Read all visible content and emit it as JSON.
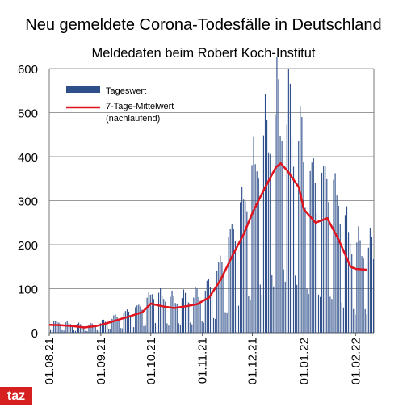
{
  "title": "Neu gemeldete Corona-Todesfälle in Deutschland",
  "subtitle": "Meldedaten beim Robert Koch-Institut",
  "logo": "taz",
  "colors": {
    "bars": "#2f4f8a",
    "line": "#e0141e",
    "grid": "#9a9a9a",
    "logo_bg": "#d6201f"
  },
  "chart_data": {
    "type": "bar",
    "ylim": [
      0,
      600
    ],
    "y_ticks": [
      "0",
      "100",
      "200",
      "300",
      "400",
      "500",
      "600"
    ],
    "x_ticks": [
      "01.08.21",
      "01.09.21",
      "01.10.21",
      "01.11.21",
      "01.12.21",
      "01.01.22",
      "01.02.22"
    ],
    "grid": "horizontal",
    "legend_position": "top-left",
    "series": [
      {
        "name": "Tageswert",
        "kind": "bar",
        "weekly_pattern": "low values on Sunday/Monday, peaks mid-week",
        "weekly_peaks": {
          "01.08.21": 28,
          "01.09.21": 60,
          "01.10.21": 110,
          "01.11.21": 190,
          "01.12.21": 525,
          "01.01.22": 395,
          "01.02.22": 195
        }
      },
      {
        "name": "7-Tage-Mittelwert",
        "name_line2": "(nachlaufend)",
        "kind": "line",
        "points": [
          {
            "x": "01.08.21",
            "y": 18
          },
          {
            "x": "08.08.21",
            "y": 17
          },
          {
            "x": "15.08.21",
            "y": 15
          },
          {
            "x": "22.08.21",
            "y": 12
          },
          {
            "x": "29.08.21",
            "y": 15
          },
          {
            "x": "05.09.21",
            "y": 22
          },
          {
            "x": "12.09.21",
            "y": 30
          },
          {
            "x": "19.09.21",
            "y": 38
          },
          {
            "x": "26.09.21",
            "y": 47
          },
          {
            "x": "01.10.21",
            "y": 66
          },
          {
            "x": "08.10.21",
            "y": 60
          },
          {
            "x": "15.10.21",
            "y": 56
          },
          {
            "x": "22.10.21",
            "y": 60
          },
          {
            "x": "29.10.21",
            "y": 65
          },
          {
            "x": "05.11.21",
            "y": 80
          },
          {
            "x": "12.11.21",
            "y": 120
          },
          {
            "x": "19.11.21",
            "y": 175
          },
          {
            "x": "26.11.21",
            "y": 225
          },
          {
            "x": "01.12.21",
            "y": 272
          },
          {
            "x": "08.12.21",
            "y": 325
          },
          {
            "x": "15.12.21",
            "y": 375
          },
          {
            "x": "18.12.21",
            "y": 385
          },
          {
            "x": "22.12.21",
            "y": 368
          },
          {
            "x": "29.12.21",
            "y": 330
          },
          {
            "x": "01.01.22",
            "y": 280
          },
          {
            "x": "08.01.22",
            "y": 250
          },
          {
            "x": "15.01.22",
            "y": 260
          },
          {
            "x": "22.01.22",
            "y": 210
          },
          {
            "x": "29.01.22",
            "y": 150
          },
          {
            "x": "01.02.22",
            "y": 145
          },
          {
            "x": "08.02.22",
            "y": 143
          }
        ]
      }
    ]
  }
}
